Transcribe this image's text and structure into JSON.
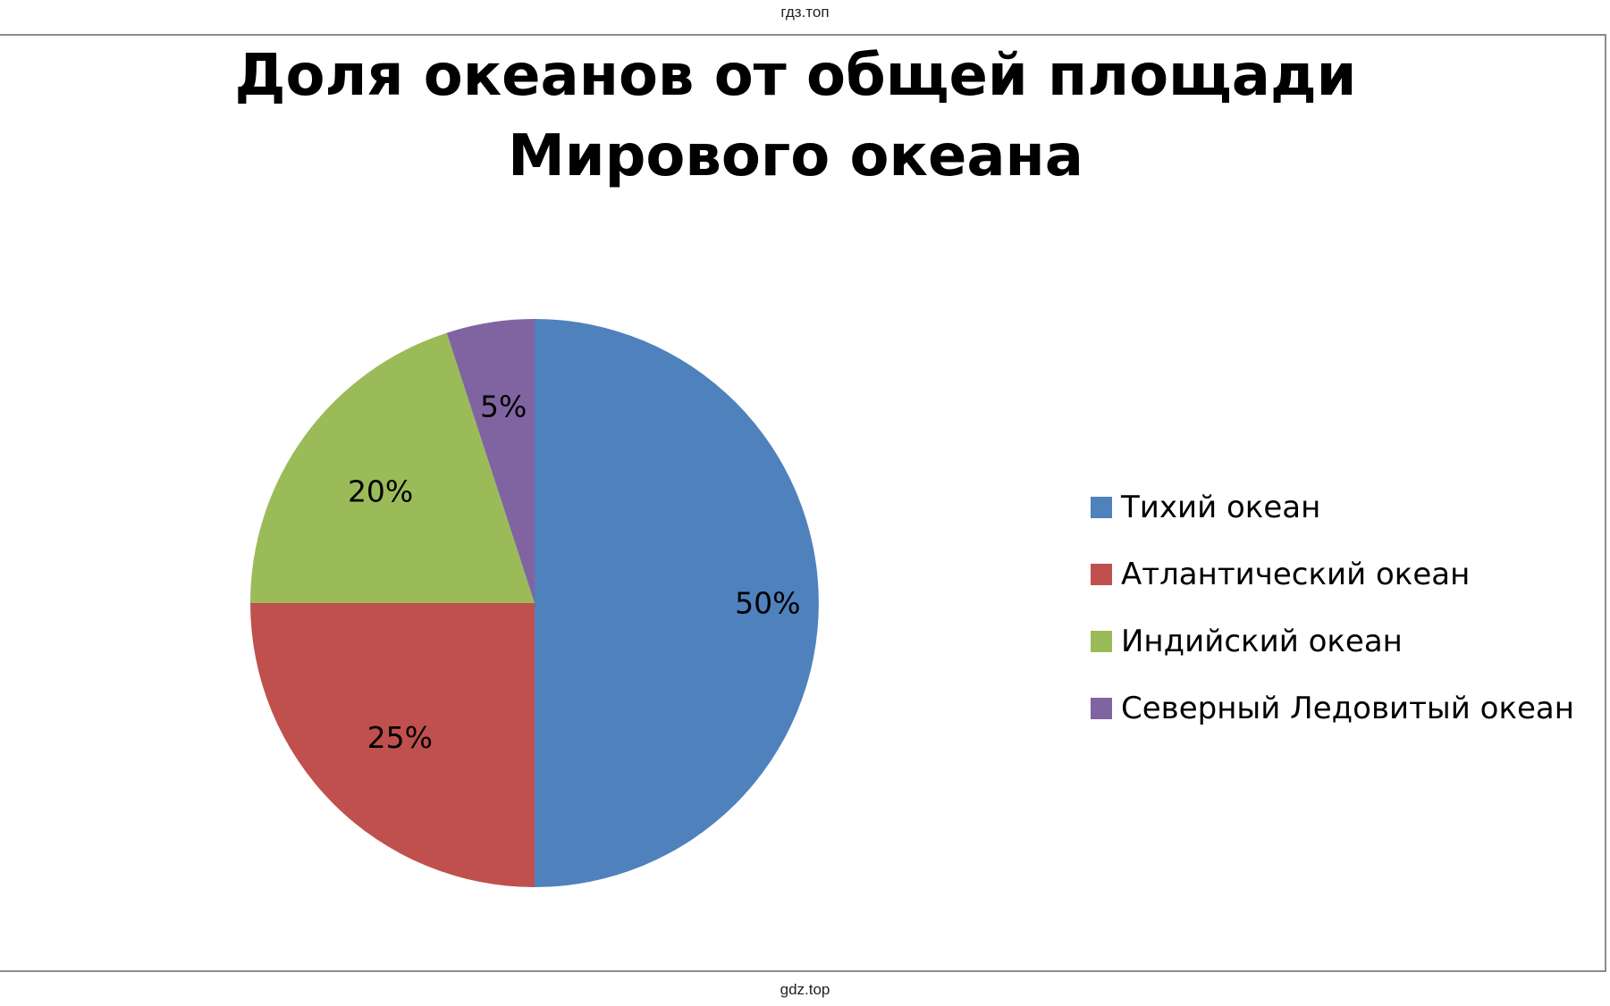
{
  "watermark_top": "гдз.топ",
  "watermark_bottom": "gdz.top",
  "chart_data": {
    "type": "pie",
    "title": "Доля океанов от общей площади Мирового океана",
    "title_lines": [
      "Доля океанов от общей площади",
      "Мирового океана"
    ],
    "legend_position": "right",
    "series": [
      {
        "name": "Тихий океан",
        "value": 50,
        "label": "50%",
        "color": "#4f81bd"
      },
      {
        "name": "Атлантический океан",
        "value": 25,
        "label": "25%",
        "color": "#c0504d"
      },
      {
        "name": "Индийский океан",
        "value": 20,
        "label": "20%",
        "color": "#9bbb59"
      },
      {
        "name": "Северный Ледовитый океан",
        "value": 5,
        "label": "5%",
        "color": "#8064a2"
      }
    ]
  }
}
